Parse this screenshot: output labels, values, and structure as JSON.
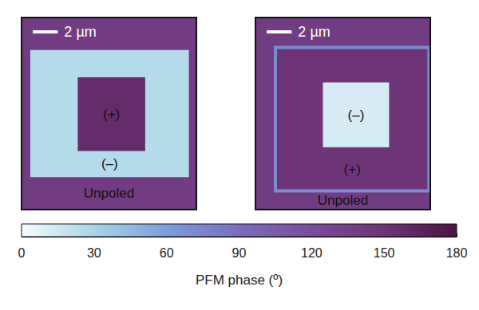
{
  "chart_data": {
    "type": "pfm_phase_map",
    "tick_labels": false,
    "panels": [
      {
        "scale_bar": {
          "text": "2 µm",
          "length": 2
        },
        "xlim": [
          0,
          14
        ],
        "ylim": [
          0,
          15.4
        ],
        "regions": [
          {
            "label": "Unpoled",
            "phase": 140,
            "x": [
              0,
              14
            ],
            "y": [
              0,
              15.4
            ]
          },
          {
            "label": "(–)",
            "phase": 25,
            "x": [
              0.7,
              13.4
            ],
            "y": [
              2.6,
              12.8
            ]
          },
          {
            "label": "(+)",
            "phase": 158,
            "x": [
              4.5,
              9.9
            ],
            "y": [
              4.8,
              10.7
            ]
          }
        ]
      },
      {
        "scale_bar": {
          "text": "2 µm",
          "length": 2
        },
        "xlim": [
          0,
          14
        ],
        "ylim": [
          0,
          15.4
        ],
        "regions": [
          {
            "label": "Unpoled",
            "phase": 140,
            "x": [
              0,
              14
            ],
            "y": [
              0,
              15.4
            ]
          },
          {
            "label": "(+)",
            "phase": 150,
            "x": [
              1.6,
              13.9
            ],
            "y": [
              2.4,
              13.9
            ],
            "edge_phase": 70
          },
          {
            "label": "(–)",
            "phase": 12,
            "x": [
              5.4,
              10.7
            ],
            "y": [
              5.2,
              10.4
            ]
          }
        ]
      }
    ],
    "colorbar": {
      "label": "PFM phase (º)",
      "range": [
        0,
        180
      ],
      "ticks": [
        0,
        30,
        60,
        90,
        120,
        150,
        180
      ]
    }
  }
}
